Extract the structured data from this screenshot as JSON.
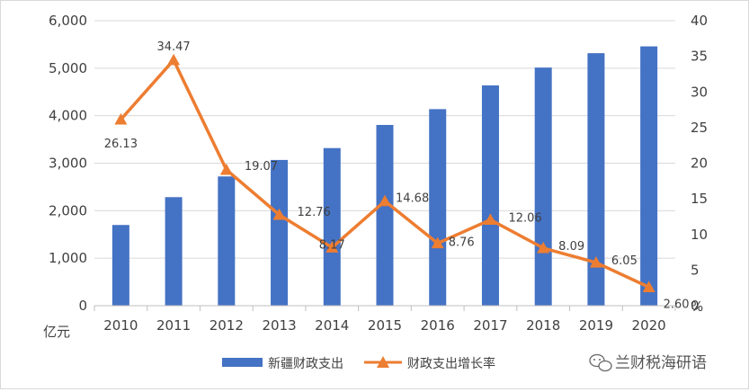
{
  "chart_data": {
    "type": "bar",
    "categories": [
      "2010",
      "2011",
      "2012",
      "2013",
      "2014",
      "2015",
      "2016",
      "2017",
      "2018",
      "2019",
      "2020"
    ],
    "series": [
      {
        "name": "新疆财政支出",
        "type": "bar",
        "axis": "left",
        "color": "#4472C4",
        "values": [
          1699,
          2285,
          2721,
          3068,
          3318,
          3805,
          4138,
          4637,
          5013,
          5316,
          5459
        ]
      },
      {
        "name": "财政支出增长率",
        "type": "line",
        "axis": "right",
        "color": "#ED7D31",
        "marker": "triangle",
        "values": [
          26.13,
          34.47,
          19.07,
          12.76,
          8.17,
          14.68,
          8.76,
          12.06,
          8.09,
          6.05,
          2.6
        ],
        "labels": [
          "26.13",
          "34.47",
          "19.07",
          "12.76",
          "8.17",
          "14.68",
          "8.76",
          "12.06",
          "8.09",
          "6.05",
          "2.60"
        ]
      }
    ],
    "y_left": {
      "unit_label": "亿元",
      "ylim": [
        0,
        6000
      ],
      "ticks": [
        0,
        1000,
        2000,
        3000,
        4000,
        5000,
        6000
      ],
      "tick_labels": [
        "0",
        "1,000",
        "2,000",
        "3,000",
        "4,000",
        "5,000",
        "6,000"
      ]
    },
    "y_right": {
      "unit_label": "%",
      "ylim": [
        0,
        40
      ],
      "ticks": [
        0,
        5,
        10,
        15,
        20,
        25,
        30,
        35,
        40
      ],
      "tick_labels": [
        "0",
        "5",
        "10",
        "15",
        "20",
        "25",
        "30",
        "35",
        "40"
      ]
    },
    "grid": true,
    "legend": "bottom",
    "legend_entries": [
      "新疆财政支出",
      "财政支出增长率"
    ]
  },
  "watermark": {
    "icon": "wechat-icon",
    "text": "兰财税海研语"
  }
}
